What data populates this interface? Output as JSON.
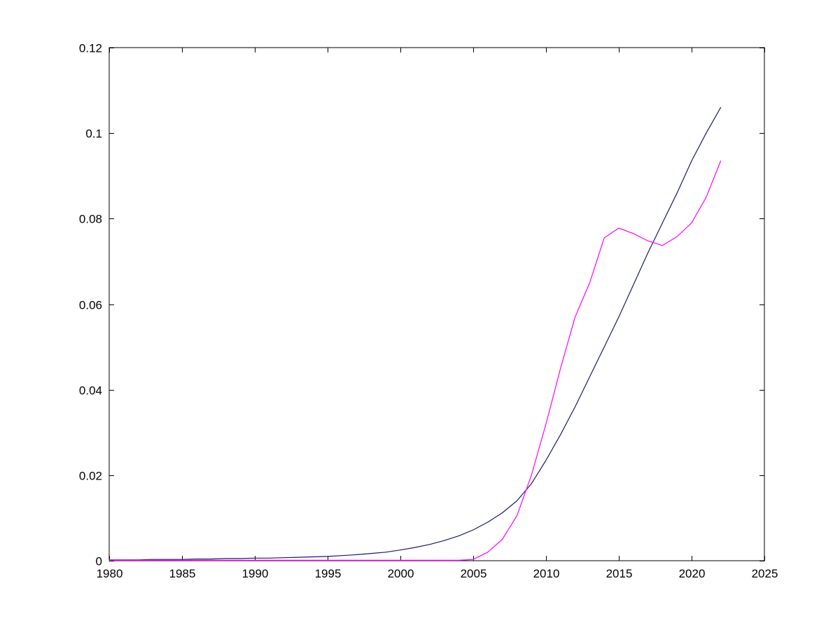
{
  "chart_data": {
    "type": "line",
    "title": "",
    "xlabel": "",
    "ylabel": "",
    "xlim": [
      1980,
      2025
    ],
    "ylim": [
      0,
      0.12
    ],
    "x_ticks": [
      1980,
      1985,
      1990,
      1995,
      2000,
      2005,
      2010,
      2015,
      2020,
      2025
    ],
    "x_tick_labels": [
      "1980",
      "1985",
      "1990",
      "1995",
      "2000",
      "2005",
      "2010",
      "2015",
      "2020",
      "2025"
    ],
    "y_ticks": [
      0,
      0.02,
      0.04,
      0.06,
      0.08,
      0.1,
      0.12
    ],
    "y_tick_labels": [
      "0",
      "0.02",
      "0.04",
      "0.06",
      "0.08",
      "0.1",
      "0.12"
    ],
    "grid": false,
    "legend": "none",
    "background_color": "#ffffff",
    "axis_color": "#000000",
    "x": [
      1980,
      1981,
      1982,
      1983,
      1984,
      1985,
      1986,
      1987,
      1988,
      1989,
      1990,
      1991,
      1992,
      1993,
      1994,
      1995,
      1996,
      1997,
      1998,
      1999,
      2000,
      2001,
      2002,
      2003,
      2004,
      2005,
      2006,
      2007,
      2008,
      2009,
      2010,
      2011,
      2012,
      2013,
      2014,
      2015,
      2016,
      2017,
      2018,
      2019,
      2020,
      2021,
      2022
    ],
    "series": [
      {
        "name": "dark-blue-line",
        "color": "#191970",
        "values": [
          0.0002,
          0.0002,
          0.0002,
          0.0003,
          0.0003,
          0.0003,
          0.0004,
          0.0004,
          0.0005,
          0.0005,
          0.0006,
          0.0006,
          0.0007,
          0.0008,
          0.0009,
          0.001,
          0.0012,
          0.0014,
          0.0017,
          0.002,
          0.0025,
          0.0031,
          0.0038,
          0.0047,
          0.0058,
          0.0072,
          0.009,
          0.0112,
          0.014,
          0.018,
          0.0235,
          0.0295,
          0.036,
          0.043,
          0.05,
          0.057,
          0.0645,
          0.072,
          0.079,
          0.086,
          0.0935,
          0.1,
          0.106
        ]
      },
      {
        "name": "magenta-line",
        "color": "#ff00ff",
        "values": [
          0.0001,
          0.0001,
          0.0001,
          0.0001,
          0.0001,
          0.0001,
          0.0001,
          0.0001,
          0.0001,
          0.0001,
          0.0001,
          0.0001,
          0.0001,
          0.0001,
          0.0001,
          0.0001,
          0.0001,
          0.0001,
          0.0001,
          0.0001,
          0.0001,
          0.0001,
          0.0001,
          0.0001,
          0.0001,
          0.0003,
          0.002,
          0.005,
          0.0105,
          0.02,
          0.032,
          0.045,
          0.057,
          0.065,
          0.0755,
          0.0778,
          0.0765,
          0.0748,
          0.0737,
          0.0758,
          0.079,
          0.085,
          0.0935
        ]
      }
    ]
  }
}
